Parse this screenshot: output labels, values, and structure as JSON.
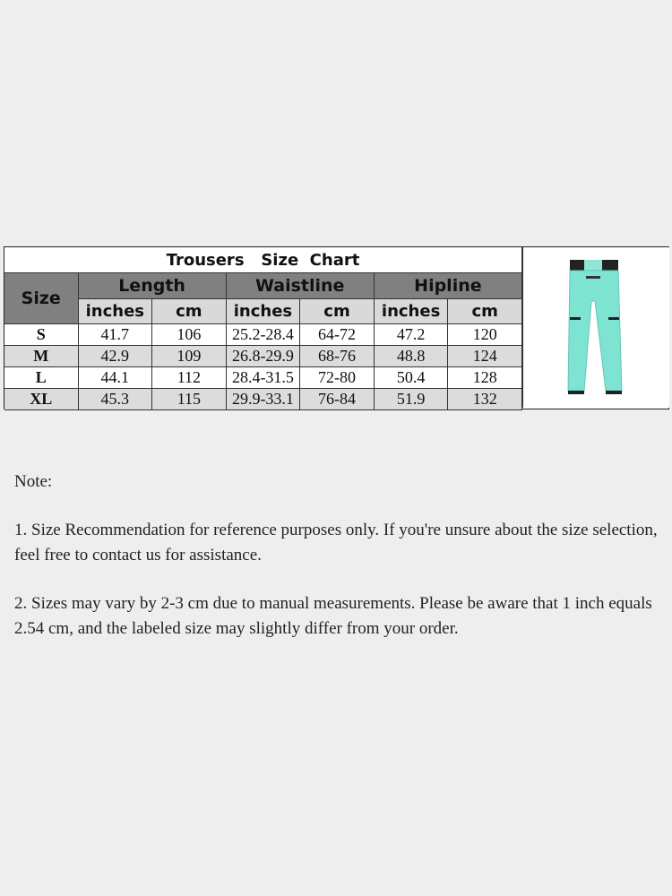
{
  "table": {
    "title": "Trousers   Size  Chart",
    "size_header": "Size",
    "groups": [
      "Length",
      "Waistline",
      "Hipline"
    ],
    "units": [
      "inches",
      "cm",
      "inches",
      "cm",
      "inches",
      "cm"
    ],
    "rows": [
      [
        "S",
        "41.7",
        "106",
        "25.2-28.4",
        "64-72",
        "47.2",
        "120"
      ],
      [
        "M",
        "42.9",
        "109",
        "26.8-29.9",
        "68-76",
        "48.8",
        "124"
      ],
      [
        "L",
        "44.1",
        "112",
        "28.4-31.5",
        "72-80",
        "50.4",
        "128"
      ],
      [
        "XL",
        "45.3",
        "115",
        "29.9-33.1",
        "76-84",
        "51.9",
        "132"
      ]
    ],
    "product_color": "#7fe3d2"
  },
  "notes": {
    "heading": "Note:",
    "items": [
      "1. Size Recommendation for reference purposes only. If you're unsure about the size selection, feel free to contact us for assistance.",
      "2. Sizes may vary by 2-3 cm due to manual measurements. Please be aware that 1 inch equals 2.54 cm, and the labeled size may slightly differ from your order."
    ]
  }
}
